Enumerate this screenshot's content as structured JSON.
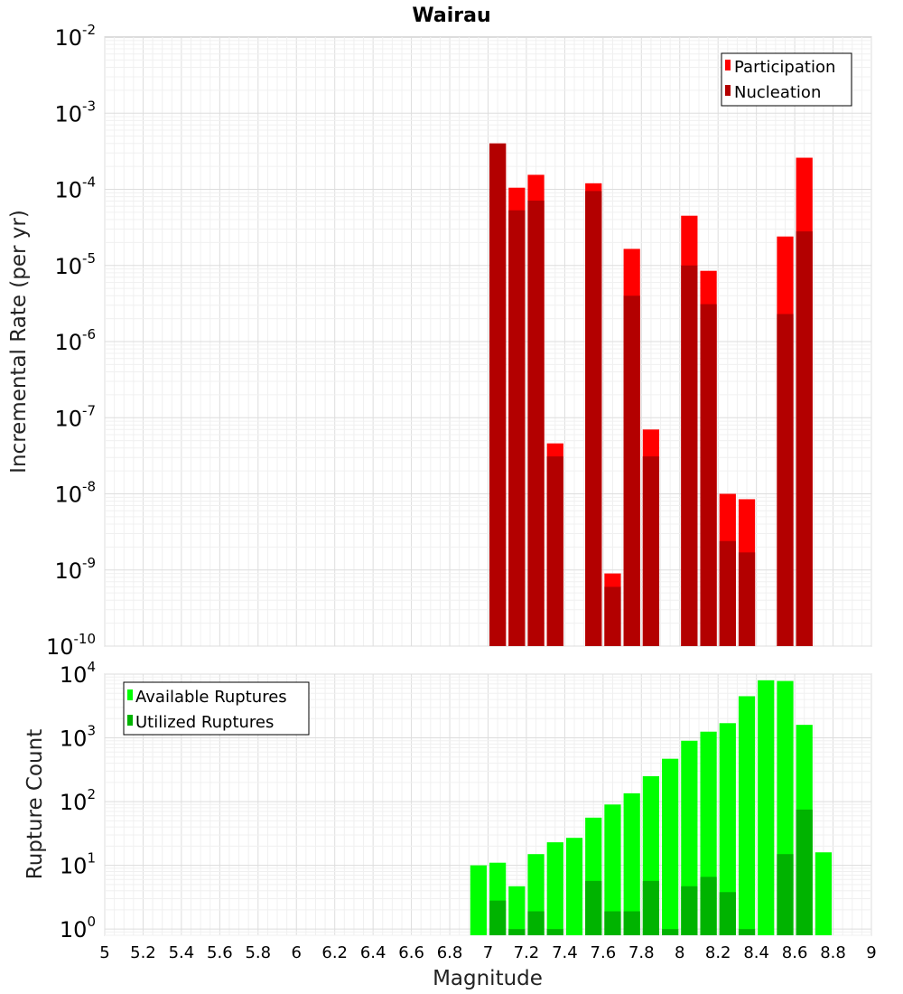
{
  "title": "Wairau",
  "chart_data": [
    {
      "type": "bar",
      "ylabel": "Incremental Rate (per yr)",
      "y_scale": "log",
      "ylim": [
        1e-10,
        0.01
      ],
      "y_tick_exponents": [
        -2,
        -3,
        -4,
        -5,
        -6,
        -7,
        -8,
        -9,
        -10
      ],
      "xlim": [
        5,
        9
      ],
      "bar_width": 0.1,
      "legend": {
        "position": "top-right",
        "entries": [
          {
            "name": "Participation",
            "color": "#ff0000"
          },
          {
            "name": "Nucleation",
            "color": "#b30000"
          }
        ]
      },
      "series": [
        {
          "name": "Participation",
          "color": "#ff0000",
          "x": [
            7.05,
            7.15,
            7.25,
            7.35,
            7.55,
            7.65,
            7.75,
            7.85,
            8.05,
            8.15,
            8.25,
            8.35,
            8.55,
            8.65
          ],
          "values": [
            0.0004,
            0.000105,
            0.000155,
            4.6e-08,
            0.00012,
            9e-10,
            1.65e-05,
            7e-08,
            4.5e-05,
            8.5e-06,
            1e-08,
            8.5e-09,
            2.4e-05,
            0.00026
          ]
        },
        {
          "name": "Nucleation",
          "color": "#b30000",
          "x": [
            7.05,
            7.15,
            7.25,
            7.35,
            7.55,
            7.65,
            7.75,
            7.85,
            8.05,
            8.15,
            8.25,
            8.35,
            8.55,
            8.65
          ],
          "values": [
            0.0004,
            5.3e-05,
            7.1e-05,
            3.1e-08,
            9.5e-05,
            6e-10,
            4e-06,
            3.1e-08,
            1e-05,
            3.1e-06,
            2.4e-09,
            1.7e-09,
            2.3e-06,
            2.8e-05
          ]
        }
      ]
    },
    {
      "type": "bar",
      "xlabel": "Magnitude",
      "ylabel": "Rupture Count",
      "y_scale": "log",
      "ylim": [
        0.8,
        10000
      ],
      "y_tick_exponents": [
        0,
        1,
        2,
        3,
        4
      ],
      "xlim": [
        5,
        9
      ],
      "x_ticks": [
        "5",
        "5.2",
        "5.4",
        "5.6",
        "5.8",
        "6",
        "6.2",
        "6.4",
        "6.6",
        "6.8",
        "7",
        "7.2",
        "7.4",
        "7.6",
        "7.8",
        "8",
        "8.2",
        "8.4",
        "8.6",
        "8.8",
        "9"
      ],
      "bar_width": 0.1,
      "legend": {
        "position": "top-left",
        "entries": [
          {
            "name": "Available Ruptures",
            "color": "#00ff00"
          },
          {
            "name": "Utilized Ruptures",
            "color": "#00b300"
          }
        ]
      },
      "series": [
        {
          "name": "Available Ruptures",
          "color": "#00ff00",
          "x": [
            6.95,
            7.05,
            7.15,
            7.25,
            7.35,
            7.45,
            7.55,
            7.65,
            7.75,
            7.85,
            7.95,
            8.05,
            8.15,
            8.25,
            8.35,
            8.45,
            8.55,
            8.65,
            8.75
          ],
          "values": [
            10,
            11,
            4.7,
            15,
            23,
            27,
            56,
            90,
            135,
            250,
            470,
            900,
            1250,
            1700,
            4500,
            8000,
            7800,
            1600,
            16
          ]
        },
        {
          "name": "Utilized Ruptures",
          "color": "#00b300",
          "x": [
            7.05,
            7.15,
            7.25,
            7.35,
            7.55,
            7.65,
            7.75,
            7.85,
            7.95,
            8.05,
            8.15,
            8.25,
            8.35,
            8.55,
            8.65
          ],
          "values": [
            2.8,
            1,
            1.9,
            1,
            5.7,
            1.9,
            1.9,
            5.7,
            1,
            4.7,
            6.6,
            3.8,
            1,
            15,
            75
          ]
        }
      ]
    }
  ]
}
